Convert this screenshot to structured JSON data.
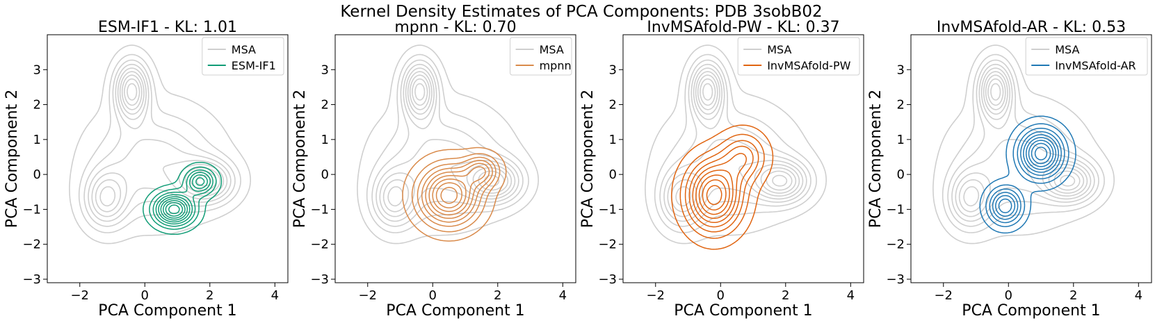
{
  "suptitle": "Kernel Density Estimates of PCA Components: PDB 3sobB02",
  "chart_data": [
    {
      "type": "kde-contour",
      "title": "ESM-IF1 - KL: 1.01",
      "xlabel": "PCA Component 1",
      "ylabel": "PCA Component 2",
      "xlim": [
        -3.0,
        4.4
      ],
      "ylim": [
        -3.1,
        4.0
      ],
      "xticks": [
        "−2",
        "0",
        "2",
        "4"
      ],
      "yticks": [
        "−3",
        "−2",
        "−1",
        "0",
        "1",
        "2",
        "3"
      ],
      "legend_position": "top-right",
      "series": [
        {
          "name": "MSA",
          "color": "#cfcfcf",
          "levels": 9,
          "modes": [
            {
              "x": -0.4,
              "y": 2.4,
              "sx": 0.35,
              "sy": 0.55,
              "w": 0.9
            },
            {
              "x": -1.2,
              "y": -0.7,
              "sx": 0.45,
              "sy": 0.55,
              "w": 0.6
            },
            {
              "x": 1.9,
              "y": -0.2,
              "sx": 0.55,
              "sy": 0.4,
              "w": 0.75
            },
            {
              "x": 0.3,
              "y": 0.3,
              "sx": 1.2,
              "sy": 1.0,
              "w": 0.45
            }
          ]
        },
        {
          "name": "ESM-IF1",
          "color": "#109c76",
          "levels": 9,
          "modes": [
            {
              "x": 0.9,
              "y": -1.0,
              "sx": 0.4,
              "sy": 0.3,
              "w": 1.0
            },
            {
              "x": 1.7,
              "y": -0.2,
              "sx": 0.3,
              "sy": 0.25,
              "w": 0.65
            }
          ]
        }
      ]
    },
    {
      "type": "kde-contour",
      "title": "mpnn - KL: 0.70",
      "xlabel": "PCA Component 1",
      "ylabel": "PCA Component 2",
      "xlim": [
        -3.0,
        4.4
      ],
      "ylim": [
        -3.1,
        4.0
      ],
      "xticks": [
        "−2",
        "0",
        "2",
        "4"
      ],
      "yticks": [
        "−3",
        "−2",
        "−1",
        "0",
        "1",
        "2",
        "3"
      ],
      "legend_position": "top-right",
      "series": [
        {
          "name": "MSA",
          "color": "#cfcfcf",
          "levels": 9,
          "modes": [
            {
              "x": -0.4,
              "y": 2.4,
              "sx": 0.35,
              "sy": 0.55,
              "w": 0.9
            },
            {
              "x": -1.2,
              "y": -0.7,
              "sx": 0.45,
              "sy": 0.55,
              "w": 0.6
            },
            {
              "x": 1.9,
              "y": -0.2,
              "sx": 0.55,
              "sy": 0.4,
              "w": 0.75
            },
            {
              "x": 0.3,
              "y": 0.3,
              "sx": 1.2,
              "sy": 1.0,
              "w": 0.45
            }
          ]
        },
        {
          "name": "mpnn",
          "color": "#d98a4a",
          "levels": 9,
          "modes": [
            {
              "x": 0.5,
              "y": -0.6,
              "sx": 0.6,
              "sy": 0.55,
              "w": 1.0
            },
            {
              "x": 1.5,
              "y": 0.1,
              "sx": 0.35,
              "sy": 0.3,
              "w": 0.55
            }
          ]
        }
      ]
    },
    {
      "type": "kde-contour",
      "title": "InvMSAfold-PW - KL: 0.37",
      "xlabel": "PCA Component 1",
      "ylabel": "PCA Component 2",
      "xlim": [
        -3.0,
        4.4
      ],
      "ylim": [
        -3.1,
        4.0
      ],
      "xticks": [
        "−2",
        "0",
        "2",
        "4"
      ],
      "yticks": [
        "−3",
        "−2",
        "−1",
        "0",
        "1",
        "2",
        "3"
      ],
      "legend_position": "top-right",
      "series": [
        {
          "name": "MSA",
          "color": "#cfcfcf",
          "levels": 9,
          "modes": [
            {
              "x": -0.4,
              "y": 2.4,
              "sx": 0.35,
              "sy": 0.55,
              "w": 0.9
            },
            {
              "x": -1.2,
              "y": -0.7,
              "sx": 0.45,
              "sy": 0.55,
              "w": 0.6
            },
            {
              "x": 1.9,
              "y": -0.2,
              "sx": 0.55,
              "sy": 0.4,
              "w": 0.75
            },
            {
              "x": 0.3,
              "y": 0.3,
              "sx": 1.2,
              "sy": 1.0,
              "w": 0.45
            }
          ]
        },
        {
          "name": "InvMSAfold-PW",
          "color": "#e06410",
          "levels": 9,
          "modes": [
            {
              "x": -0.2,
              "y": -0.6,
              "sx": 0.55,
              "sy": 0.65,
              "w": 1.0
            },
            {
              "x": 0.7,
              "y": 0.5,
              "sx": 0.45,
              "sy": 0.45,
              "w": 0.45
            }
          ]
        }
      ]
    },
    {
      "type": "kde-contour",
      "title": "InvMSAfold-AR - KL: 0.53",
      "xlabel": "PCA Component 1",
      "ylabel": "PCA Component 2",
      "xlim": [
        -3.0,
        4.4
      ],
      "ylim": [
        -3.1,
        4.0
      ],
      "xticks": [
        "−2",
        "0",
        "2",
        "4"
      ],
      "yticks": [
        "−3",
        "−2",
        "−1",
        "0",
        "1",
        "2",
        "3"
      ],
      "legend_position": "top-right",
      "series": [
        {
          "name": "MSA",
          "color": "#cfcfcf",
          "levels": 9,
          "modes": [
            {
              "x": -0.4,
              "y": 2.4,
              "sx": 0.35,
              "sy": 0.55,
              "w": 0.9
            },
            {
              "x": -1.2,
              "y": -0.7,
              "sx": 0.45,
              "sy": 0.55,
              "w": 0.6
            },
            {
              "x": 1.9,
              "y": -0.2,
              "sx": 0.55,
              "sy": 0.4,
              "w": 0.75
            },
            {
              "x": 0.3,
              "y": 0.3,
              "sx": 1.2,
              "sy": 1.0,
              "w": 0.45
            }
          ]
        },
        {
          "name": "InvMSAfold-AR",
          "color": "#1f78b4",
          "levels": 9,
          "modes": [
            {
              "x": 1.0,
              "y": 0.6,
              "sx": 0.45,
              "sy": 0.45,
              "w": 1.0
            },
            {
              "x": -0.1,
              "y": -0.9,
              "sx": 0.35,
              "sy": 0.35,
              "w": 0.7
            }
          ]
        }
      ]
    }
  ]
}
